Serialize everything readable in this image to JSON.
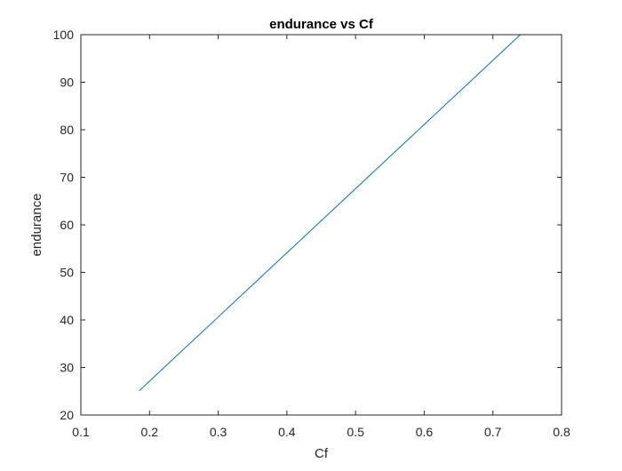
{
  "chart_data": {
    "type": "line",
    "title": "endurance vs Cf",
    "xlabel": "Cf",
    "ylabel": "endurance",
    "xlim": [
      0.1,
      0.8
    ],
    "ylim": [
      20,
      100
    ],
    "xticks": [
      0.1,
      0.2,
      0.3,
      0.4,
      0.5,
      0.6,
      0.7,
      0.8
    ],
    "yticks": [
      20,
      30,
      40,
      50,
      60,
      70,
      80,
      90,
      100
    ],
    "xtick_labels": [
      "0.1",
      "0.2",
      "0.3",
      "0.4",
      "0.5",
      "0.6",
      "0.7",
      "0.8"
    ],
    "ytick_labels": [
      "20",
      "30",
      "40",
      "50",
      "60",
      "70",
      "80",
      "90",
      "100"
    ],
    "grid": false,
    "series": [
      {
        "color": "#0072BD",
        "x": [
          0.185,
          0.74
        ],
        "y": [
          25.1,
          100
        ]
      }
    ]
  }
}
